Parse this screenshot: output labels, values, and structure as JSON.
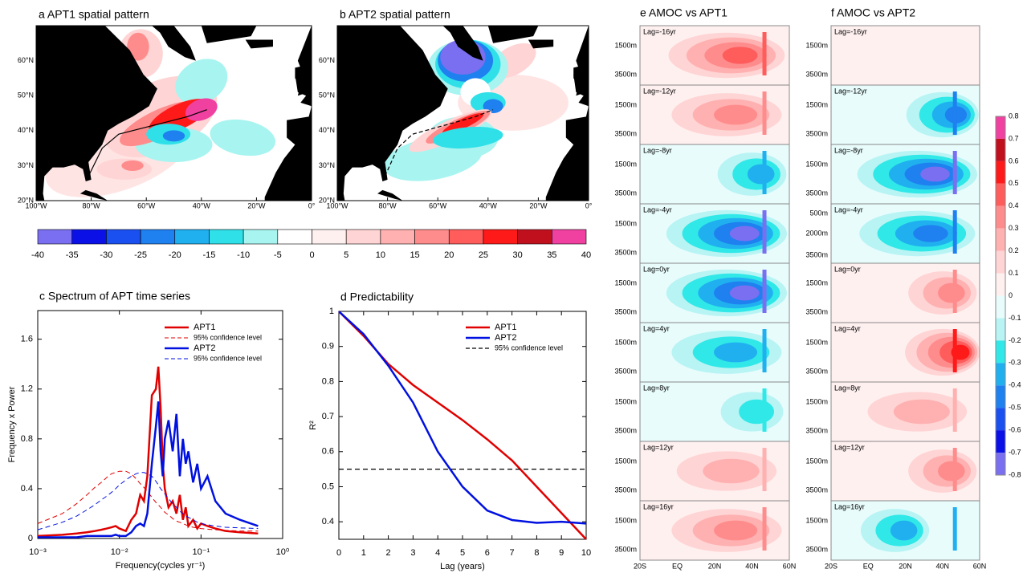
{
  "maps": {
    "panels": [
      {
        "title": "a  APT1 spatial pattern"
      },
      {
        "title": "b  APT2 spatial pattern"
      }
    ],
    "lat_labels": [
      "60°N",
      "50°N",
      "40°N",
      "30°N",
      "20°N"
    ],
    "lon_labels": [
      "100°W",
      "80°W",
      "60°W",
      "40°W",
      "20°W",
      "0°"
    ],
    "colorbar": {
      "labels": [
        -40,
        -35,
        -30,
        -25,
        -20,
        -15,
        -10,
        -5,
        0,
        5,
        10,
        15,
        20,
        25,
        30,
        35,
        40
      ],
      "colors": [
        "#7a6ff0",
        "#0a10e6",
        "#1a50f0",
        "#1f80f0",
        "#20b0f0",
        "#30e0e8",
        "#a8f4f0",
        "#ffffff",
        "#fff0f0",
        "#ffd4d4",
        "#ffb0b0",
        "#ff8c8c",
        "#ff5c5c",
        "#ff1a1a",
        "#c0101e",
        "#f040a0"
      ]
    }
  },
  "chart_data": [
    {
      "type": "line",
      "title": "c  Spectrum of APT time series",
      "x_label": "Frequency(cycles yr⁻¹)",
      "y_label": "Frequency x Power",
      "log_x": true,
      "x": [
        0.001,
        0.002,
        0.003,
        0.004,
        0.005,
        0.006,
        0.007,
        0.008,
        0.009,
        0.01,
        0.012,
        0.014,
        0.016,
        0.018,
        0.02,
        0.022,
        0.025,
        0.028,
        0.03,
        0.032,
        0.034,
        0.036,
        0.04,
        0.045,
        0.05,
        0.055,
        0.06,
        0.065,
        0.07,
        0.08,
        0.09,
        0.1,
        0.12,
        0.15,
        0.2,
        0.3,
        0.5
      ],
      "xlim": [
        0.001,
        1
      ],
      "xticks": [
        {
          "value": 0.001,
          "label": "10⁻³"
        },
        {
          "value": 0.01,
          "label": "10⁻²"
        },
        {
          "value": 0.1,
          "label": "10⁻¹"
        },
        {
          "value": 1,
          "label": "10⁰"
        }
      ],
      "ylim": [
        0,
        1.83
      ],
      "yticks": [
        0,
        0.4,
        0.8,
        1.2,
        1.6
      ],
      "series": [
        {
          "name": "APT1",
          "color": "#e00000",
          "width": 2.5,
          "values": [
            0.02,
            0.03,
            0.04,
            0.05,
            0.06,
            0.07,
            0.08,
            0.09,
            0.1,
            0.08,
            0.06,
            0.15,
            0.2,
            0.35,
            0.3,
            0.5,
            1.15,
            1.2,
            1.38,
            1.05,
            0.6,
            0.4,
            0.25,
            0.3,
            0.2,
            0.35,
            0.15,
            0.25,
            0.1,
            0.15,
            0.08,
            0.12,
            0.1,
            0.08,
            0.06,
            0.05,
            0.04
          ]
        },
        {
          "name": "95% confidence level",
          "color": "#e00000",
          "dash": true,
          "width": 1,
          "values": [
            0.12,
            0.2,
            0.28,
            0.35,
            0.41,
            0.45,
            0.49,
            0.52,
            0.53,
            0.54,
            0.54,
            0.52,
            0.48,
            0.44,
            0.41,
            0.38,
            0.33,
            0.29,
            0.27,
            0.25,
            0.23,
            0.21,
            0.19,
            0.16,
            0.14,
            0.13,
            0.12,
            0.11,
            0.1,
            0.09,
            0.085,
            0.08,
            0.075,
            0.07,
            0.065,
            0.06,
            0.06
          ]
        },
        {
          "name": "APT2",
          "color": "#0010e0",
          "width": 2.5,
          "values": [
            0.01,
            0.01,
            0.01,
            0.02,
            0.02,
            0.02,
            0.02,
            0.02,
            0.03,
            0.02,
            0.02,
            0.05,
            0.1,
            0.12,
            0.1,
            0.2,
            0.6,
            0.9,
            1.1,
            0.7,
            0.5,
            0.8,
            0.95,
            0.7,
            1.0,
            0.5,
            0.8,
            0.6,
            0.7,
            0.45,
            0.6,
            0.4,
            0.5,
            0.3,
            0.2,
            0.15,
            0.1
          ]
        },
        {
          "name": "95% confidence level",
          "color": "#0010e0",
          "dash": true,
          "width": 1,
          "values": [
            0.07,
            0.13,
            0.18,
            0.23,
            0.27,
            0.31,
            0.34,
            0.37,
            0.4,
            0.43,
            0.47,
            0.5,
            0.52,
            0.53,
            0.53,
            0.52,
            0.5,
            0.46,
            0.43,
            0.4,
            0.38,
            0.36,
            0.32,
            0.28,
            0.25,
            0.22,
            0.2,
            0.18,
            0.17,
            0.15,
            0.13,
            0.12,
            0.11,
            0.1,
            0.09,
            0.085,
            0.08
          ]
        }
      ]
    },
    {
      "type": "line",
      "title": "d  Predictability",
      "x_label": "Lag (years)",
      "y_label": "R²",
      "x": [
        0,
        1,
        2,
        3,
        4,
        5,
        6,
        7,
        8,
        9,
        10
      ],
      "xlim": [
        0,
        10
      ],
      "xticks": [
        0,
        1,
        2,
        3,
        4,
        5,
        6,
        7,
        8,
        9,
        10
      ],
      "ylim": [
        0.35,
        1
      ],
      "yticks": [
        0.4,
        0.5,
        0.6,
        0.7,
        0.8,
        0.9,
        1
      ],
      "series": [
        {
          "name": "APT1",
          "color": "#e00000",
          "width": 2.5,
          "values": [
            1,
            0.93,
            0.85,
            0.79,
            0.74,
            0.69,
            0.635,
            0.575,
            0.5,
            0.425,
            0.35
          ]
        },
        {
          "name": "APT2",
          "color": "#0010e0",
          "width": 2.5,
          "values": [
            1,
            0.935,
            0.845,
            0.74,
            0.6,
            0.5,
            0.432,
            0.405,
            0.397,
            0.4,
            0.395
          ]
        },
        {
          "name": "95% confidence level",
          "color": "#000000",
          "dash": true,
          "width": 1.3,
          "values": [
            0.55,
            0.55,
            0.55,
            0.55,
            0.55,
            0.55,
            0.55,
            0.55,
            0.55,
            0.55,
            0.55
          ]
        }
      ]
    }
  ],
  "amoc": {
    "panels": [
      {
        "title": "e  AMOC vs APT1",
        "rows": [
          {
            "lag": "Lag=-16yr",
            "depths": [
              "1500m",
              "3500m"
            ]
          },
          {
            "lag": "Lag=-12yr",
            "depths": [
              "1500m",
              "3500m"
            ]
          },
          {
            "lag": "Lag=-8yr",
            "depths": [
              "1500m",
              "3500m"
            ]
          },
          {
            "lag": "Lag=-4yr",
            "depths": [
              "1500m",
              "3500m"
            ]
          },
          {
            "lag": "Lag=0yr",
            "depths": [
              "1500m",
              "3500m"
            ]
          },
          {
            "lag": "Lag=4yr",
            "depths": [
              "1500m",
              "3500m"
            ]
          },
          {
            "lag": "Lag=8yr",
            "depths": [
              "1500m",
              "3500m"
            ]
          },
          {
            "lag": "Lag=12yr",
            "depths": [
              "1500m",
              "3500m"
            ]
          },
          {
            "lag": "Lag=16yr",
            "depths": [
              "1500m",
              "3500m"
            ]
          }
        ]
      },
      {
        "title": "f  AMOC vs APT2",
        "rows": [
          {
            "lag": "Lag=-16yr",
            "depths": [
              "1500m",
              "3500m"
            ]
          },
          {
            "lag": "Lag=-12yr",
            "depths": [
              "1500m",
              "3500m"
            ]
          },
          {
            "lag": "Lag=-8yr",
            "depths": [
              "1500m",
              "3500m"
            ]
          },
          {
            "lag": "Lag=-4yr",
            "depths": [
              "500m",
              "2000m",
              "3500m"
            ]
          },
          {
            "lag": "Lag=0yr",
            "depths": [
              "1500m",
              "3500m"
            ]
          },
          {
            "lag": "Lag=4yr",
            "depths": [
              "1500m",
              "3500m"
            ]
          },
          {
            "lag": "Lag=8yr",
            "depths": [
              "1500m",
              "3500m"
            ]
          },
          {
            "lag": "Lag=12yr",
            "depths": [
              "1500m",
              "3500m"
            ]
          },
          {
            "lag": "Lag=16yr",
            "depths": [
              "1500m",
              "3500m"
            ]
          }
        ]
      }
    ],
    "x_labels": [
      "20S",
      "EQ",
      "20N",
      "40N",
      "60N"
    ],
    "colorbar": {
      "labels": [
        0.8,
        0.7,
        0.6,
        0.5,
        0.4,
        0.3,
        0.2,
        0.1,
        0,
        -0.1,
        -0.2,
        -0.3,
        -0.4,
        -0.5,
        -0.6,
        -0.7,
        -0.8
      ],
      "colors": [
        "#f040a0",
        "#c0101e",
        "#ff1a1a",
        "#ff5c5c",
        "#ff8c8c",
        "#ffb0b0",
        "#ffd4d4",
        "#fff0f0",
        "#e8fcfc",
        "#b8f4f4",
        "#30e8e8",
        "#20b0f0",
        "#1f80f0",
        "#1a50f0",
        "#0a10e6",
        "#7a6ff0"
      ]
    }
  }
}
